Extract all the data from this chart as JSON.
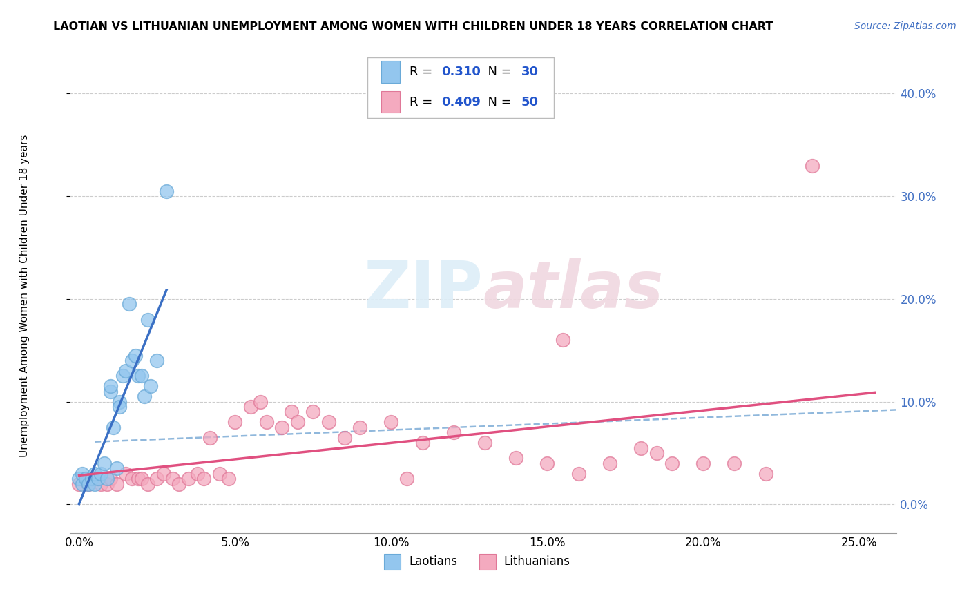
{
  "title": "LAOTIAN VS LITHUANIAN UNEMPLOYMENT AMONG WOMEN WITH CHILDREN UNDER 18 YEARS CORRELATION CHART",
  "source": "Source: ZipAtlas.com",
  "ylabel": "Unemployment Among Women with Children Under 18 years",
  "xlim": [
    -0.003,
    0.262
  ],
  "ylim": [
    -0.028,
    0.445
  ],
  "xlabel_ticks": [
    "0.0%",
    "5.0%",
    "10.0%",
    "15.0%",
    "20.0%",
    "25.0%"
  ],
  "xlabel_vals": [
    0.0,
    0.05,
    0.1,
    0.15,
    0.2,
    0.25
  ],
  "ylabel_ticks": [
    "0.0%",
    "10.0%",
    "20.0%",
    "30.0%",
    "40.0%"
  ],
  "ylabel_vals": [
    0.0,
    0.1,
    0.2,
    0.3,
    0.4
  ],
  "laotian_color": "#93C6EE",
  "laotian_edge_color": "#6AAAD8",
  "lithuanian_color": "#F4AABF",
  "lithuanian_edge_color": "#E07898",
  "laotian_R": 0.31,
  "laotian_N": 30,
  "lithuanian_R": 0.409,
  "lithuanian_N": 50,
  "laotian_line_color": "#3A6FC4",
  "lithuanian_line_color": "#E05080",
  "dashed_line_color": "#90B8DC",
  "watermark_zip": "ZIP",
  "watermark_atlas": "atlas",
  "laotian_points_x": [
    0.0,
    0.001,
    0.001,
    0.002,
    0.003,
    0.004,
    0.005,
    0.005,
    0.006,
    0.007,
    0.008,
    0.009,
    0.01,
    0.01,
    0.011,
    0.012,
    0.013,
    0.013,
    0.014,
    0.015,
    0.016,
    0.017,
    0.018,
    0.019,
    0.02,
    0.021,
    0.022,
    0.023,
    0.025,
    0.028
  ],
  "laotian_points_y": [
    0.025,
    0.02,
    0.03,
    0.025,
    0.02,
    0.025,
    0.02,
    0.03,
    0.025,
    0.03,
    0.04,
    0.025,
    0.11,
    0.115,
    0.075,
    0.035,
    0.1,
    0.095,
    0.125,
    0.13,
    0.195,
    0.14,
    0.145,
    0.125,
    0.125,
    0.105,
    0.18,
    0.115,
    0.14,
    0.305
  ],
  "lithuanian_points_x": [
    0.0,
    0.003,
    0.005,
    0.007,
    0.009,
    0.01,
    0.012,
    0.015,
    0.017,
    0.019,
    0.02,
    0.022,
    0.025,
    0.027,
    0.03,
    0.032,
    0.035,
    0.038,
    0.04,
    0.042,
    0.045,
    0.048,
    0.05,
    0.055,
    0.058,
    0.06,
    0.065,
    0.068,
    0.07,
    0.075,
    0.08,
    0.085,
    0.09,
    0.1,
    0.105,
    0.11,
    0.12,
    0.13,
    0.14,
    0.15,
    0.155,
    0.16,
    0.17,
    0.18,
    0.185,
    0.19,
    0.2,
    0.21,
    0.22,
    0.235
  ],
  "lithuanian_points_y": [
    0.02,
    0.02,
    0.025,
    0.02,
    0.02,
    0.025,
    0.02,
    0.03,
    0.025,
    0.025,
    0.025,
    0.02,
    0.025,
    0.03,
    0.025,
    0.02,
    0.025,
    0.03,
    0.025,
    0.065,
    0.03,
    0.025,
    0.08,
    0.095,
    0.1,
    0.08,
    0.075,
    0.09,
    0.08,
    0.09,
    0.08,
    0.065,
    0.075,
    0.08,
    0.025,
    0.06,
    0.07,
    0.06,
    0.045,
    0.04,
    0.16,
    0.03,
    0.04,
    0.055,
    0.05,
    0.04,
    0.04,
    0.04,
    0.03,
    0.33
  ]
}
